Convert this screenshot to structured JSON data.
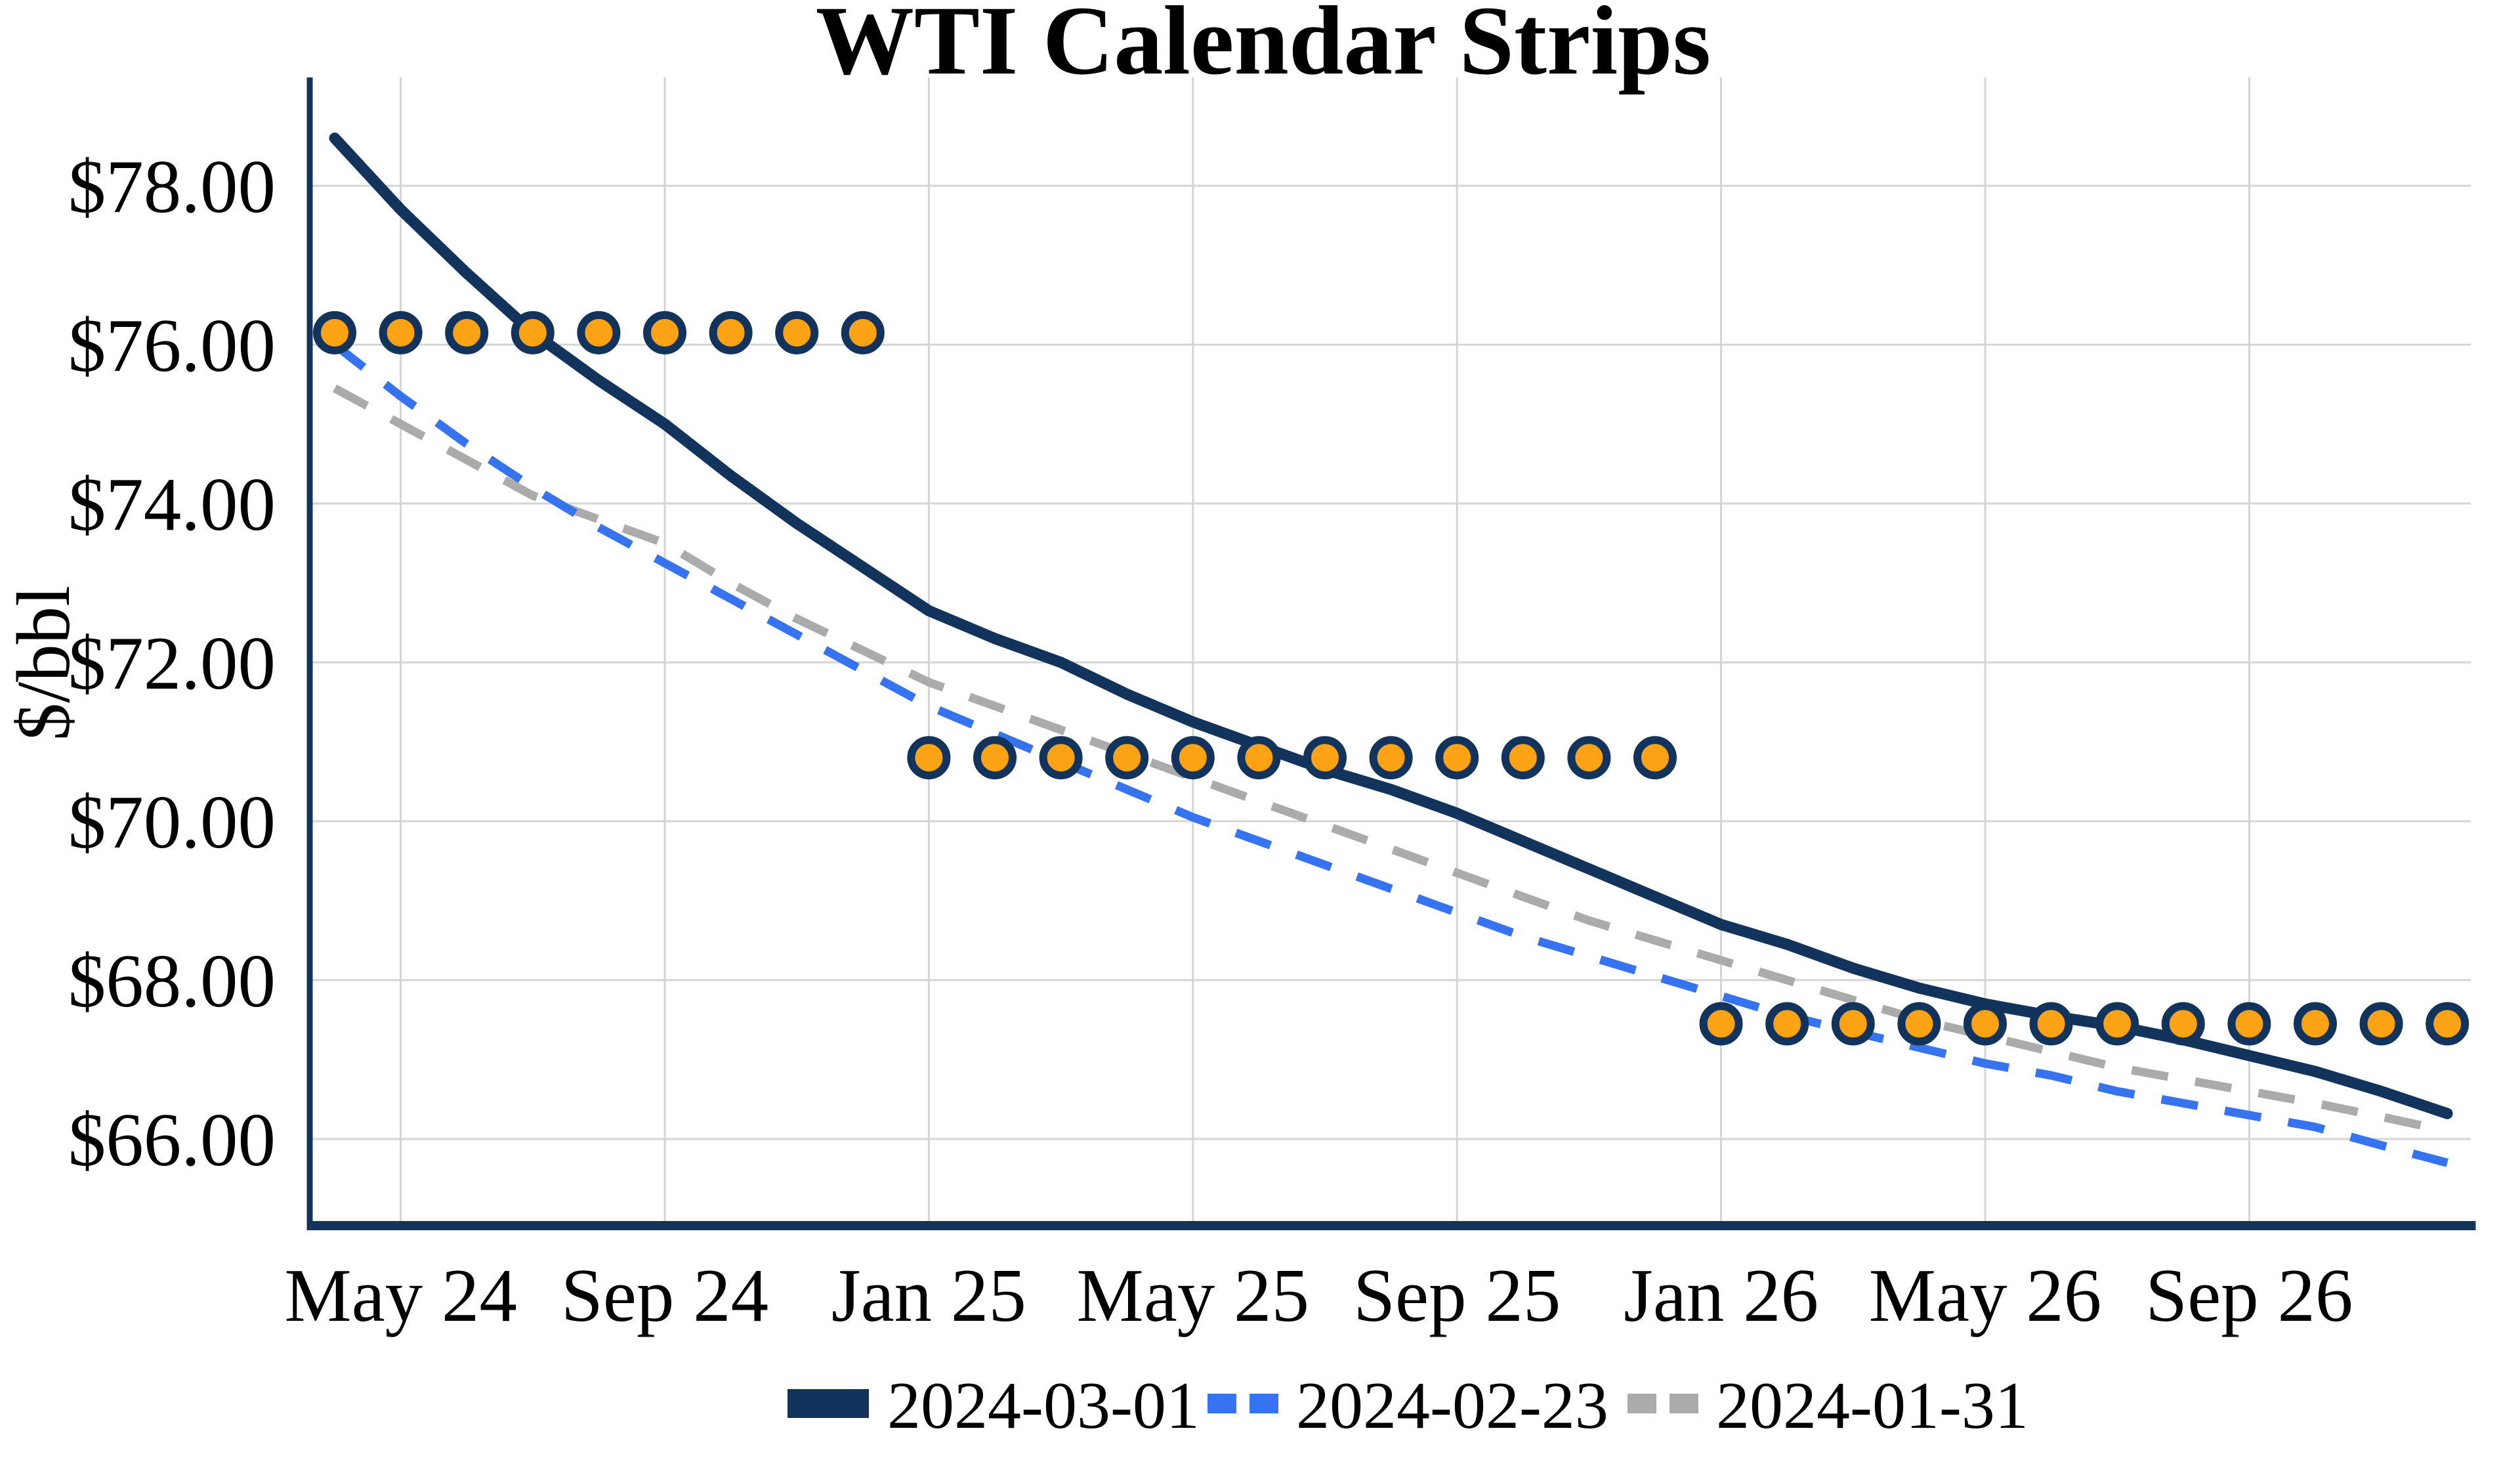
{
  "title": "WTI Calendar Strips",
  "y_axis": {
    "label": "$/bbl",
    "ticks": [
      {
        "label": "$78.00",
        "value": 78
      },
      {
        "label": "$76.00",
        "value": 76
      },
      {
        "label": "$74.00",
        "value": 74
      },
      {
        "label": "$72.00",
        "value": 72
      },
      {
        "label": "$70.00",
        "value": 70
      },
      {
        "label": "$68.00",
        "value": 68
      },
      {
        "label": "$66.00",
        "value": 66
      }
    ]
  },
  "x_axis": {
    "ticks": [
      {
        "label": "May 24",
        "month_index": 1
      },
      {
        "label": "Sep 24",
        "month_index": 5
      },
      {
        "label": "Jan 25",
        "month_index": 9
      },
      {
        "label": "May 25",
        "month_index": 13
      },
      {
        "label": "Sep 25",
        "month_index": 17
      },
      {
        "label": "Jan 26",
        "month_index": 21
      },
      {
        "label": "May 26",
        "month_index": 25
      },
      {
        "label": "Sep 26",
        "month_index": 29
      }
    ]
  },
  "legend": [
    {
      "label": "2024-03-01",
      "style": "solid",
      "color": "#12345c"
    },
    {
      "label": "2024-02-23",
      "style": "dashed",
      "color": "#3573f0"
    },
    {
      "label": "2024-01-31",
      "style": "dashed",
      "color": "#ababab"
    }
  ],
  "colors": {
    "navy": "#12345c",
    "blue": "#3573f0",
    "gray": "#ababab",
    "orange": "#fba315",
    "gridline": "#d4d4d4",
    "background": "#ffffff"
  },
  "chart_data": {
    "type": "line",
    "title": "WTI Calendar Strips",
    "ylabel": "$/bbl",
    "xlabel": "",
    "ylim": [
      65.0,
      79.3
    ],
    "grid": true,
    "legend_position": "bottom-center",
    "x": [
      "Apr-24",
      "May-24",
      "Jun-24",
      "Jul-24",
      "Aug-24",
      "Sep-24",
      "Oct-24",
      "Nov-24",
      "Dec-24",
      "Jan-25",
      "Feb-25",
      "Mar-25",
      "Apr-25",
      "May-25",
      "Jun-25",
      "Jul-25",
      "Aug-25",
      "Sep-25",
      "Oct-25",
      "Nov-25",
      "Dec-25",
      "Jan-26",
      "Feb-26",
      "Mar-26",
      "Apr-26",
      "May-26",
      "Jun-26",
      "Jul-26",
      "Aug-26",
      "Sep-26",
      "Oct-26",
      "Nov-26",
      "Dec-26"
    ],
    "series": [
      {
        "name": "2024-03-01",
        "style": "solid",
        "color": "#12345c",
        "values": [
          78.6,
          77.7,
          76.9,
          76.15,
          75.55,
          75.0,
          74.35,
          73.75,
          73.2,
          72.65,
          72.3,
          72.0,
          71.6,
          71.25,
          70.95,
          70.65,
          70.4,
          70.1,
          69.75,
          69.4,
          69.05,
          68.7,
          68.45,
          68.15,
          67.9,
          67.7,
          67.55,
          67.42,
          67.25,
          67.05,
          66.85,
          66.6,
          66.32
        ]
      },
      {
        "name": "2024-02-23",
        "style": "dashed",
        "color": "#3573f0",
        "values": [
          76.0,
          75.35,
          74.75,
          74.2,
          73.7,
          73.25,
          72.8,
          72.35,
          71.9,
          71.45,
          71.1,
          70.75,
          70.4,
          70.05,
          69.75,
          69.45,
          69.15,
          68.85,
          68.55,
          68.3,
          68.05,
          67.8,
          67.55,
          67.35,
          67.15,
          66.95,
          66.8,
          66.6,
          66.45,
          66.3,
          66.15,
          65.92,
          65.7
        ]
      },
      {
        "name": "2024-01-31",
        "style": "dashed",
        "color": "#ababab",
        "values": [
          75.45,
          75.0,
          74.55,
          74.1,
          73.8,
          73.5,
          73.0,
          72.55,
          72.15,
          71.75,
          71.45,
          71.15,
          70.85,
          70.55,
          70.25,
          69.95,
          69.65,
          69.35,
          69.05,
          68.75,
          68.5,
          68.25,
          68.0,
          67.75,
          67.5,
          67.3,
          67.1,
          66.9,
          66.75,
          66.6,
          66.45,
          66.28,
          66.1
        ]
      }
    ],
    "markers": [
      {
        "name": "calendar-2024-strip",
        "value": 76.15,
        "from_index": 0,
        "to_index": 8,
        "from": "Apr-24",
        "to": "Dec-24",
        "color": "#fba315"
      },
      {
        "name": "calendar-2025-strip",
        "value": 70.8,
        "from_index": 9,
        "to_index": 20,
        "from": "Jan-25",
        "to": "Dec-25",
        "color": "#fba315"
      },
      {
        "name": "calendar-2026-strip",
        "value": 67.45,
        "from_index": 21,
        "to_index": 32,
        "from": "Jan-26",
        "to": "Dec-26",
        "color": "#fba315"
      }
    ]
  }
}
